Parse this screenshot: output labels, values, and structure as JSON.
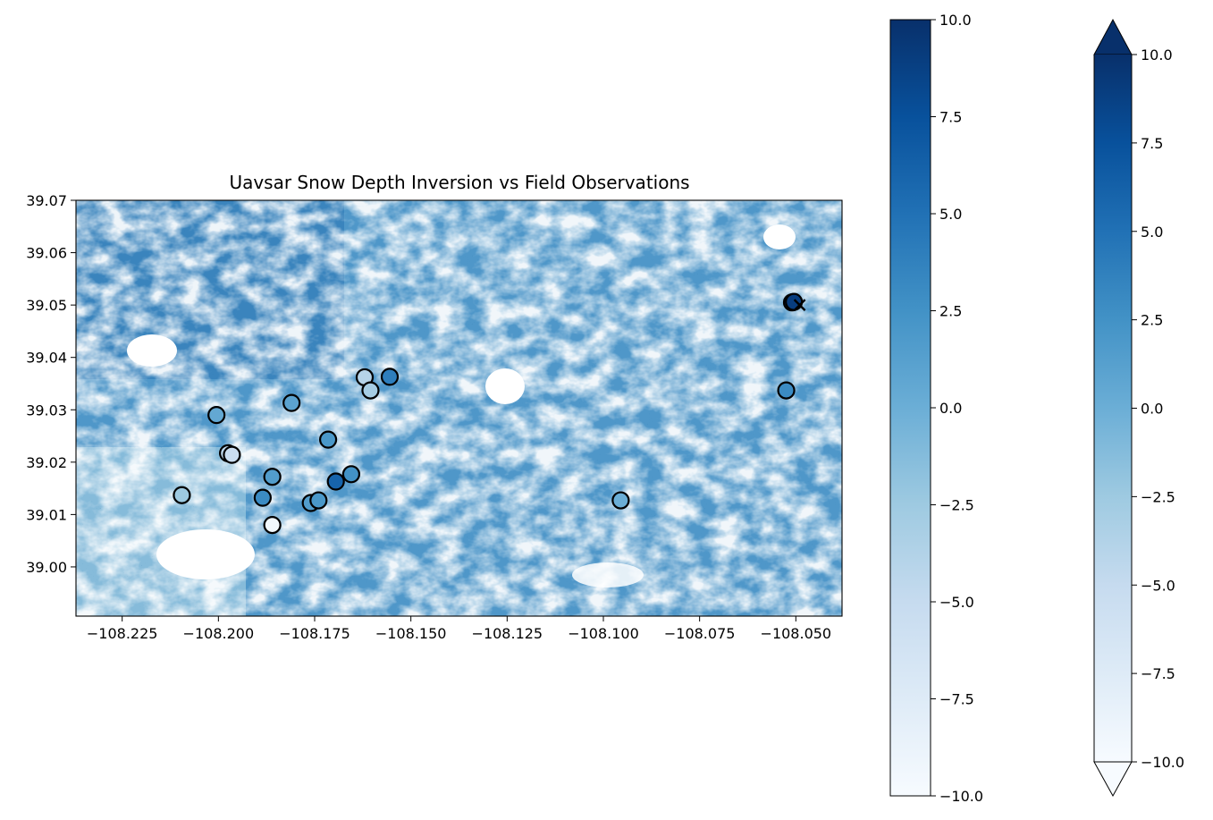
{
  "chart_data": {
    "type": "scatter",
    "title": "Uavsar Snow Depth Inversion vs Field Observations",
    "background": "raster",
    "colormap": "Blues",
    "xlim": [
      -108.237,
      -108.038
    ],
    "ylim": [
      38.9906,
      39.07
    ],
    "x_ticks": [
      -108.225,
      -108.2,
      -108.175,
      -108.15,
      -108.125,
      -108.1,
      -108.075,
      -108.05
    ],
    "x_tick_labels": [
      "−108.225",
      "−108.200",
      "−108.175",
      "−108.150",
      "−108.125",
      "−108.100",
      "−108.075",
      "−108.050"
    ],
    "y_ticks": [
      39.0,
      39.01,
      39.02,
      39.03,
      39.04,
      39.05,
      39.06,
      39.07
    ],
    "y_tick_labels": [
      "39.00",
      "39.01",
      "39.02",
      "39.03",
      "39.04",
      "39.05",
      "39.06",
      "39.07"
    ],
    "points": [
      {
        "x": -108.2095,
        "y": 39.0137,
        "value": -2.5
      },
      {
        "x": -108.2005,
        "y": 39.029,
        "value": 0.5
      },
      {
        "x": -108.1975,
        "y": 39.0217,
        "value": -4.5
      },
      {
        "x": -108.1965,
        "y": 39.0214,
        "value": -5.5
      },
      {
        "x": -108.1885,
        "y": 39.0132,
        "value": 3.0
      },
      {
        "x": -108.186,
        "y": 39.0172,
        "value": 1.5
      },
      {
        "x": -108.186,
        "y": 39.008,
        "value": -9.5
      },
      {
        "x": -108.181,
        "y": 39.0313,
        "value": 1.0
      },
      {
        "x": -108.176,
        "y": 39.0122,
        "value": 1.5
      },
      {
        "x": -108.174,
        "y": 39.0127,
        "value": 2.0
      },
      {
        "x": -108.1715,
        "y": 39.0243,
        "value": 2.0
      },
      {
        "x": -108.1695,
        "y": 39.0163,
        "value": 6.0
      },
      {
        "x": -108.1655,
        "y": 39.0177,
        "value": 2.5
      },
      {
        "x": -108.162,
        "y": 39.0362,
        "value": -4.0
      },
      {
        "x": -108.1605,
        "y": 39.0337,
        "value": -3.0
      },
      {
        "x": -108.1555,
        "y": 39.0363,
        "value": 4.0
      },
      {
        "x": -108.0955,
        "y": 39.0127,
        "value": 0.0
      },
      {
        "x": -108.0525,
        "y": 39.0337,
        "value": 3.0
      },
      {
        "x": -108.051,
        "y": 39.0505,
        "value": 7.5
      },
      {
        "x": -108.0505,
        "y": 39.0506,
        "value": 9.0
      }
    ],
    "x_marker": {
      "x": -108.049,
      "y": 39.05,
      "marker": "x"
    },
    "colorbars": [
      {
        "vmin": -10.0,
        "vmax": 10.0,
        "ticks": [
          -10.0,
          -7.5,
          -5.0,
          -2.5,
          0.0,
          2.5,
          5.0,
          7.5,
          10.0
        ],
        "tick_labels": [
          "−10.0",
          "−7.5",
          "−5.0",
          "−2.5",
          "0.0",
          "2.5",
          "5.0",
          "7.5",
          "10.0"
        ],
        "extend": "neither"
      },
      {
        "vmin": -10.0,
        "vmax": 10.0,
        "ticks": [
          -10.0,
          -7.5,
          -5.0,
          -2.5,
          0.0,
          2.5,
          5.0,
          7.5,
          10.0
        ],
        "tick_labels": [
          "−10.0",
          "−7.5",
          "−5.0",
          "−2.5",
          "0.0",
          "2.5",
          "5.0",
          "7.5",
          "10.0"
        ],
        "extend": "both"
      }
    ]
  },
  "colors": {
    "blues_0": "#f7fbff",
    "blues_1": "#deebf7",
    "blues_2": "#c6dbef",
    "blues_3": "#9ecae1",
    "blues_4": "#6baed6",
    "blues_5": "#4292c6",
    "blues_6": "#2171b5",
    "blues_7": "#08519c",
    "blues_8": "#08306b",
    "edge": "#000000"
  }
}
